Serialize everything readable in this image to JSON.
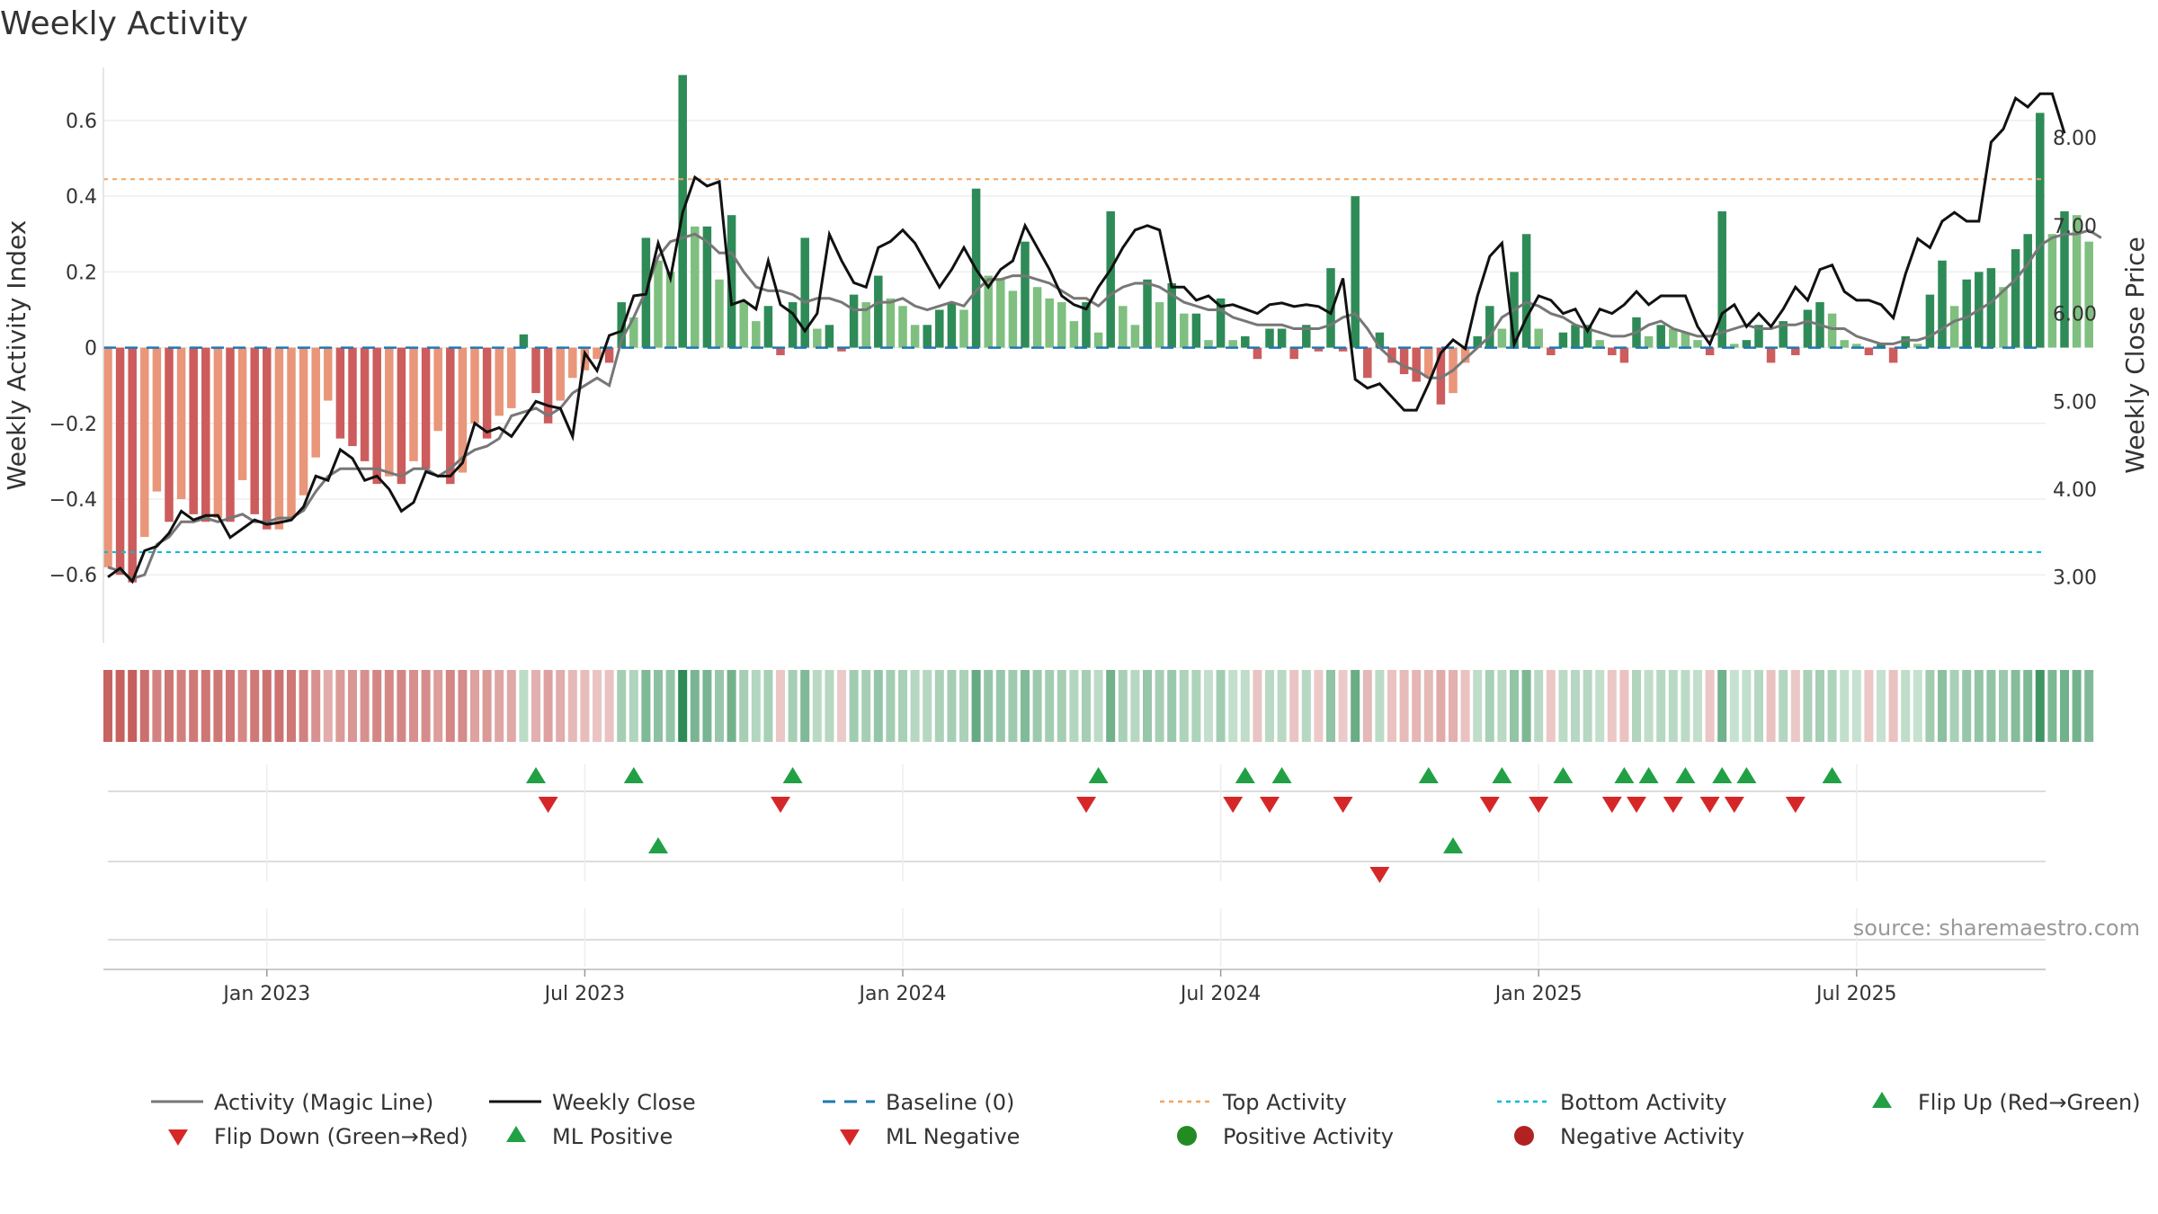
{
  "chart_data": {
    "type": "bar",
    "title": "Weekly Activity",
    "ylabel_left": "Weekly Activity Index",
    "ylabel_right": "Weekly Close Price",
    "source": "source: sharemaestro.com",
    "x_ticks": [
      "Jan 2023",
      "Jul 2023",
      "Jan 2024",
      "Jul 2024",
      "Jan 2025",
      "Jul 2025"
    ],
    "x_tick_weeks": [
      13,
      39,
      65,
      91,
      117,
      143
    ],
    "left_ticks": [
      0.6,
      0.4,
      0.2,
      0,
      -0.2,
      -0.4,
      -0.6
    ],
    "left_tick_labels": [
      "0.6",
      "0.4",
      "0.2",
      "0",
      "−0.2",
      "−0.4",
      "−0.6"
    ],
    "left_ylim": [
      -0.78,
      0.74
    ],
    "right_ticks": [
      8,
      7,
      6,
      5,
      4,
      3
    ],
    "right_tick_labels": [
      "8.00",
      "7.00",
      "6.00",
      "5.00",
      "4.00",
      "3.00"
    ],
    "right_ylim": [
      2.25,
      8.8
    ],
    "top_activity": 0.445,
    "bottom_activity": -0.54,
    "activity": [
      -0.58,
      -0.6,
      -0.62,
      -0.5,
      -0.38,
      -0.46,
      -0.4,
      -0.44,
      -0.46,
      -0.45,
      -0.46,
      -0.35,
      -0.44,
      -0.48,
      -0.48,
      -0.45,
      -0.39,
      -0.29,
      -0.14,
      -0.24,
      -0.26,
      -0.3,
      -0.36,
      -0.34,
      -0.36,
      -0.3,
      -0.32,
      -0.22,
      -0.36,
      -0.33,
      -0.2,
      -0.24,
      -0.18,
      -0.16,
      0.035,
      -0.12,
      -0.2,
      -0.14,
      -0.08,
      -0.06,
      -0.03,
      -0.04,
      0.12,
      0.08,
      0.29,
      0.23,
      0.2,
      0.72,
      0.32,
      0.32,
      0.18,
      0.35,
      0.12,
      0.07,
      0.11,
      -0.02,
      0.12,
      0.29,
      0.05,
      0.06,
      -0.01,
      0.14,
      0.12,
      0.19,
      0.13,
      0.11,
      0.06,
      0.06,
      0.1,
      0.12,
      0.1,
      0.42,
      0.19,
      0.18,
      0.15,
      0.28,
      0.16,
      0.13,
      0.12,
      0.07,
      0.12,
      0.04,
      0.36,
      0.11,
      0.06,
      0.18,
      0.12,
      0.17,
      0.09,
      0.09,
      0.02,
      0.13,
      0.02,
      0.03,
      -0.03,
      0.05,
      0.05,
      -0.03,
      0.06,
      -0.01,
      0.21,
      -0.01,
      0.4,
      -0.08,
      0.04,
      -0.04,
      -0.07,
      -0.09,
      -0.08,
      -0.15,
      -0.12,
      -0.04,
      0.03,
      0.11,
      0.05,
      0.2,
      0.3,
      0.05,
      -0.02,
      0.04,
      0.06,
      0.06,
      0.02,
      -0.02,
      -0.04,
      0.08,
      0.03,
      0.06,
      0.05,
      0.04,
      0.02,
      -0.02,
      0.36,
      0.01,
      0.02,
      0.06,
      -0.04,
      0.07,
      -0.02,
      0.1,
      0.12,
      0.09,
      0.02,
      0.01,
      -0.02,
      0.01,
      -0.04,
      0.03,
      0.01,
      0.14,
      0.23,
      0.11,
      0.18,
      0.2,
      0.21,
      0.16,
      0.26,
      0.3,
      0.62,
      0.3,
      0.36,
      0.35,
      0.28
    ],
    "magic_line": [
      -0.58,
      -0.59,
      -0.61,
      -0.6,
      -0.52,
      -0.5,
      -0.46,
      -0.46,
      -0.45,
      -0.46,
      -0.45,
      -0.44,
      -0.46,
      -0.46,
      -0.45,
      -0.45,
      -0.43,
      -0.38,
      -0.34,
      -0.32,
      -0.32,
      -0.32,
      -0.32,
      -0.33,
      -0.34,
      -0.32,
      -0.32,
      -0.34,
      -0.32,
      -0.29,
      -0.27,
      -0.26,
      -0.24,
      -0.18,
      -0.17,
      -0.16,
      -0.18,
      -0.16,
      -0.12,
      -0.1,
      -0.08,
      -0.1,
      0.02,
      0.08,
      0.15,
      0.24,
      0.28,
      0.29,
      0.3,
      0.28,
      0.25,
      0.25,
      0.2,
      0.16,
      0.15,
      0.15,
      0.14,
      0.12,
      0.13,
      0.13,
      0.12,
      0.1,
      0.1,
      0.12,
      0.12,
      0.13,
      0.11,
      0.1,
      0.11,
      0.12,
      0.11,
      0.15,
      0.18,
      0.18,
      0.19,
      0.19,
      0.18,
      0.17,
      0.15,
      0.13,
      0.13,
      0.11,
      0.14,
      0.16,
      0.17,
      0.17,
      0.16,
      0.14,
      0.12,
      0.11,
      0.1,
      0.1,
      0.08,
      0.07,
      0.06,
      0.06,
      0.06,
      0.05,
      0.05,
      0.05,
      0.06,
      0.08,
      0.09,
      0.05,
      0.0,
      -0.03,
      -0.05,
      -0.06,
      -0.08,
      -0.08,
      -0.06,
      -0.03,
      0.0,
      0.03,
      0.08,
      0.1,
      0.12,
      0.11,
      0.09,
      0.08,
      0.06,
      0.05,
      0.04,
      0.03,
      0.03,
      0.04,
      0.06,
      0.07,
      0.05,
      0.04,
      0.03,
      0.03,
      0.04,
      0.05,
      0.06,
      0.05,
      0.05,
      0.06,
      0.06,
      0.07,
      0.06,
      0.05,
      0.05,
      0.03,
      0.02,
      0.01,
      0.01,
      0.02,
      0.02,
      0.03,
      0.05,
      0.07,
      0.08,
      0.1,
      0.12,
      0.15,
      0.18,
      0.22,
      0.27,
      0.29,
      0.3,
      0.3,
      0.31,
      0.29
    ],
    "weekly_close": [
      3.0,
      3.1,
      2.95,
      3.3,
      3.35,
      3.5,
      3.75,
      3.65,
      3.7,
      3.7,
      3.45,
      3.55,
      3.65,
      3.6,
      3.62,
      3.65,
      3.8,
      4.15,
      4.1,
      4.45,
      4.35,
      4.1,
      4.15,
      4.0,
      3.75,
      3.85,
      4.2,
      4.15,
      4.15,
      4.3,
      4.75,
      4.65,
      4.7,
      4.6,
      4.8,
      5.0,
      4.95,
      4.92,
      4.6,
      5.55,
      5.35,
      5.75,
      5.8,
      6.2,
      6.22,
      6.8,
      6.4,
      7.15,
      7.55,
      7.45,
      7.5,
      6.1,
      6.15,
      6.05,
      6.6,
      6.1,
      6.0,
      5.8,
      6.0,
      6.9,
      6.6,
      6.35,
      6.3,
      6.75,
      6.82,
      6.95,
      6.8,
      6.55,
      6.3,
      6.5,
      6.75,
      6.5,
      6.3,
      6.5,
      6.6,
      7.0,
      6.75,
      6.5,
      6.2,
      6.1,
      6.05,
      6.3,
      6.5,
      6.75,
      6.95,
      7.0,
      6.95,
      6.3,
      6.3,
      6.15,
      6.2,
      6.08,
      6.1,
      6.05,
      6.0,
      6.1,
      6.12,
      6.08,
      6.1,
      6.08,
      6.0,
      6.4,
      5.25,
      5.15,
      5.2,
      5.05,
      4.9,
      4.9,
      5.2,
      5.55,
      5.7,
      5.6,
      6.2,
      6.65,
      6.8,
      5.65,
      5.95,
      6.2,
      6.15,
      6.0,
      6.05,
      5.8,
      6.05,
      6.0,
      6.1,
      6.25,
      6.1,
      6.2,
      6.2,
      6.2,
      5.85,
      5.65,
      6.0,
      6.1,
      5.85,
      6.0,
      5.85,
      6.05,
      6.3,
      6.15,
      6.5,
      6.55,
      6.25,
      6.15,
      6.15,
      6.1,
      5.95,
      6.45,
      6.85,
      6.75,
      7.05,
      7.15,
      7.05,
      7.05,
      7.95,
      8.1,
      8.45,
      8.35,
      8.5,
      8.5,
      8.05
    ],
    "flip_up_weeks": [
      35,
      43,
      56,
      81,
      93,
      96,
      108,
      114,
      119,
      124,
      126,
      129,
      132,
      134,
      141
    ],
    "flip_down_weeks": [
      36,
      55,
      80,
      92,
      95,
      101,
      113,
      117,
      123,
      125,
      128,
      131,
      133,
      138
    ],
    "ml_positive_weeks": [
      45,
      110
    ],
    "ml_negative_weeks": [
      104
    ],
    "colors": {
      "green_dark": "#2e8b57",
      "green_light": "#7fbf7f",
      "red_dark": "#cd5c5c",
      "red_light": "#e9967a",
      "magic_line": "#777777",
      "weekly_close": "#111111",
      "baseline": "#1f77b4",
      "top_activity": "#f4a460",
      "bottom_activity": "#00bcd4",
      "marker_green": "#22a045",
      "marker_red": "#d62728"
    },
    "legend": [
      {
        "label": "Activity (Magic Line)",
        "symbol": "line-gray"
      },
      {
        "label": "Weekly Close",
        "symbol": "line-black"
      },
      {
        "label": "Baseline (0)",
        "symbol": "dash-blue"
      },
      {
        "label": "Top Activity",
        "symbol": "dot-orange"
      },
      {
        "label": "Bottom Activity",
        "symbol": "dot-cyan"
      },
      {
        "label": "Flip Up (Red→Green)",
        "symbol": "tri-up-green"
      },
      {
        "label": "Flip Down (Green→Red)",
        "symbol": "tri-down-red"
      },
      {
        "label": "ML Positive",
        "symbol": "tri-up-green"
      },
      {
        "label": "ML Negative",
        "symbol": "tri-down-red"
      },
      {
        "label": "Positive Activity",
        "symbol": "circle-green"
      },
      {
        "label": "Negative Activity",
        "symbol": "circle-red"
      }
    ]
  }
}
